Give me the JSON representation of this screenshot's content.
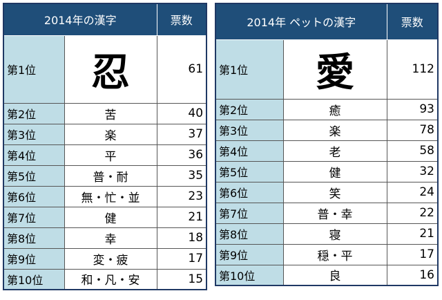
{
  "tables": [
    {
      "header": {
        "title": "2014年の漢字",
        "votes": "票数"
      },
      "rows": [
        {
          "rank": "第1位",
          "kanji": "忍",
          "votes": "61"
        },
        {
          "rank": "第2位",
          "kanji": "苦",
          "votes": "40"
        },
        {
          "rank": "第3位",
          "kanji": "楽",
          "votes": "37"
        },
        {
          "rank": "第4位",
          "kanji": "平",
          "votes": "36"
        },
        {
          "rank": "第5位",
          "kanji": "普・耐",
          "votes": "35"
        },
        {
          "rank": "第6位",
          "kanji": "無・忙・並",
          "votes": "23"
        },
        {
          "rank": "第7位",
          "kanji": "健",
          "votes": "21"
        },
        {
          "rank": "第8位",
          "kanji": "幸",
          "votes": "18"
        },
        {
          "rank": "第9位",
          "kanji": "変・疲",
          "votes": "17"
        },
        {
          "rank": "第10位",
          "kanji": "和・凡・安",
          "votes": "15"
        }
      ]
    },
    {
      "header": {
        "title": "2014年 ペットの漢字",
        "votes": "票数"
      },
      "rows": [
        {
          "rank": "第1位",
          "kanji": "愛",
          "votes": "112"
        },
        {
          "rank": "第2位",
          "kanji": "癒",
          "votes": "93"
        },
        {
          "rank": "第3位",
          "kanji": "楽",
          "votes": "78"
        },
        {
          "rank": "第4位",
          "kanji": "老",
          "votes": "58"
        },
        {
          "rank": "第5位",
          "kanji": "健",
          "votes": "32"
        },
        {
          "rank": "第6位",
          "kanji": "笑",
          "votes": "24"
        },
        {
          "rank": "第7位",
          "kanji": "普・幸",
          "votes": "22"
        },
        {
          "rank": "第8位",
          "kanji": "寝",
          "votes": "21"
        },
        {
          "rank": "第9位",
          "kanji": "穏・平",
          "votes": "17"
        },
        {
          "rank": "第10位",
          "kanji": "良",
          "votes": "16"
        }
      ]
    }
  ]
}
